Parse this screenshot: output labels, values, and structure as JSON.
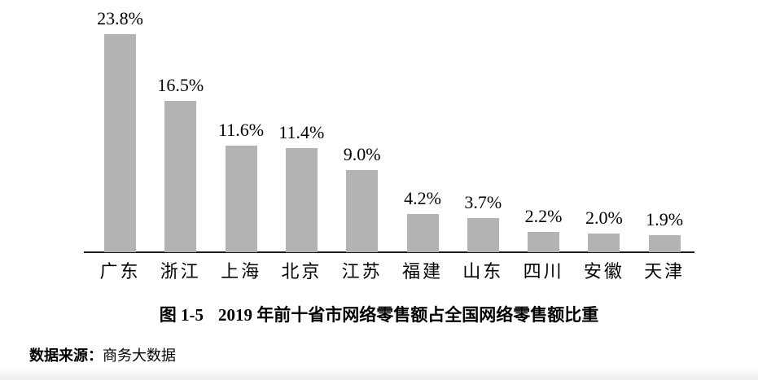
{
  "chart_data": {
    "type": "bar",
    "title": "图 1-5 2019 年前十省市网络零售额占全国网络零售额比重",
    "categories": [
      "广东",
      "浙江",
      "上海",
      "北京",
      "江苏",
      "福建",
      "山东",
      "四川",
      "安徽",
      "天津"
    ],
    "values": [
      23.8,
      16.5,
      11.6,
      11.4,
      9.0,
      4.2,
      3.7,
      2.2,
      2.0,
      1.9
    ],
    "value_labels": [
      "23.8%",
      "16.5%",
      "11.6%",
      "11.4%",
      "9.0%",
      "4.2%",
      "3.7%",
      "2.2%",
      "2.0%",
      "1.9%"
    ],
    "xlabel": "",
    "ylabel": "",
    "ylim": [
      0,
      27.5
    ],
    "grid": false,
    "legend": false,
    "y_axis_shown": false,
    "value_label_position": "above-bar",
    "bar_color": "#b3b3b3",
    "axis_color": "#1a1a1a",
    "text_color": "#000000"
  },
  "caption": {
    "figure_label": "图 1-5",
    "title": "2019 年前十省市网络零售额占全国网络零售额比重"
  },
  "source": {
    "label": "数据来源：",
    "text": "商务大数据"
  }
}
